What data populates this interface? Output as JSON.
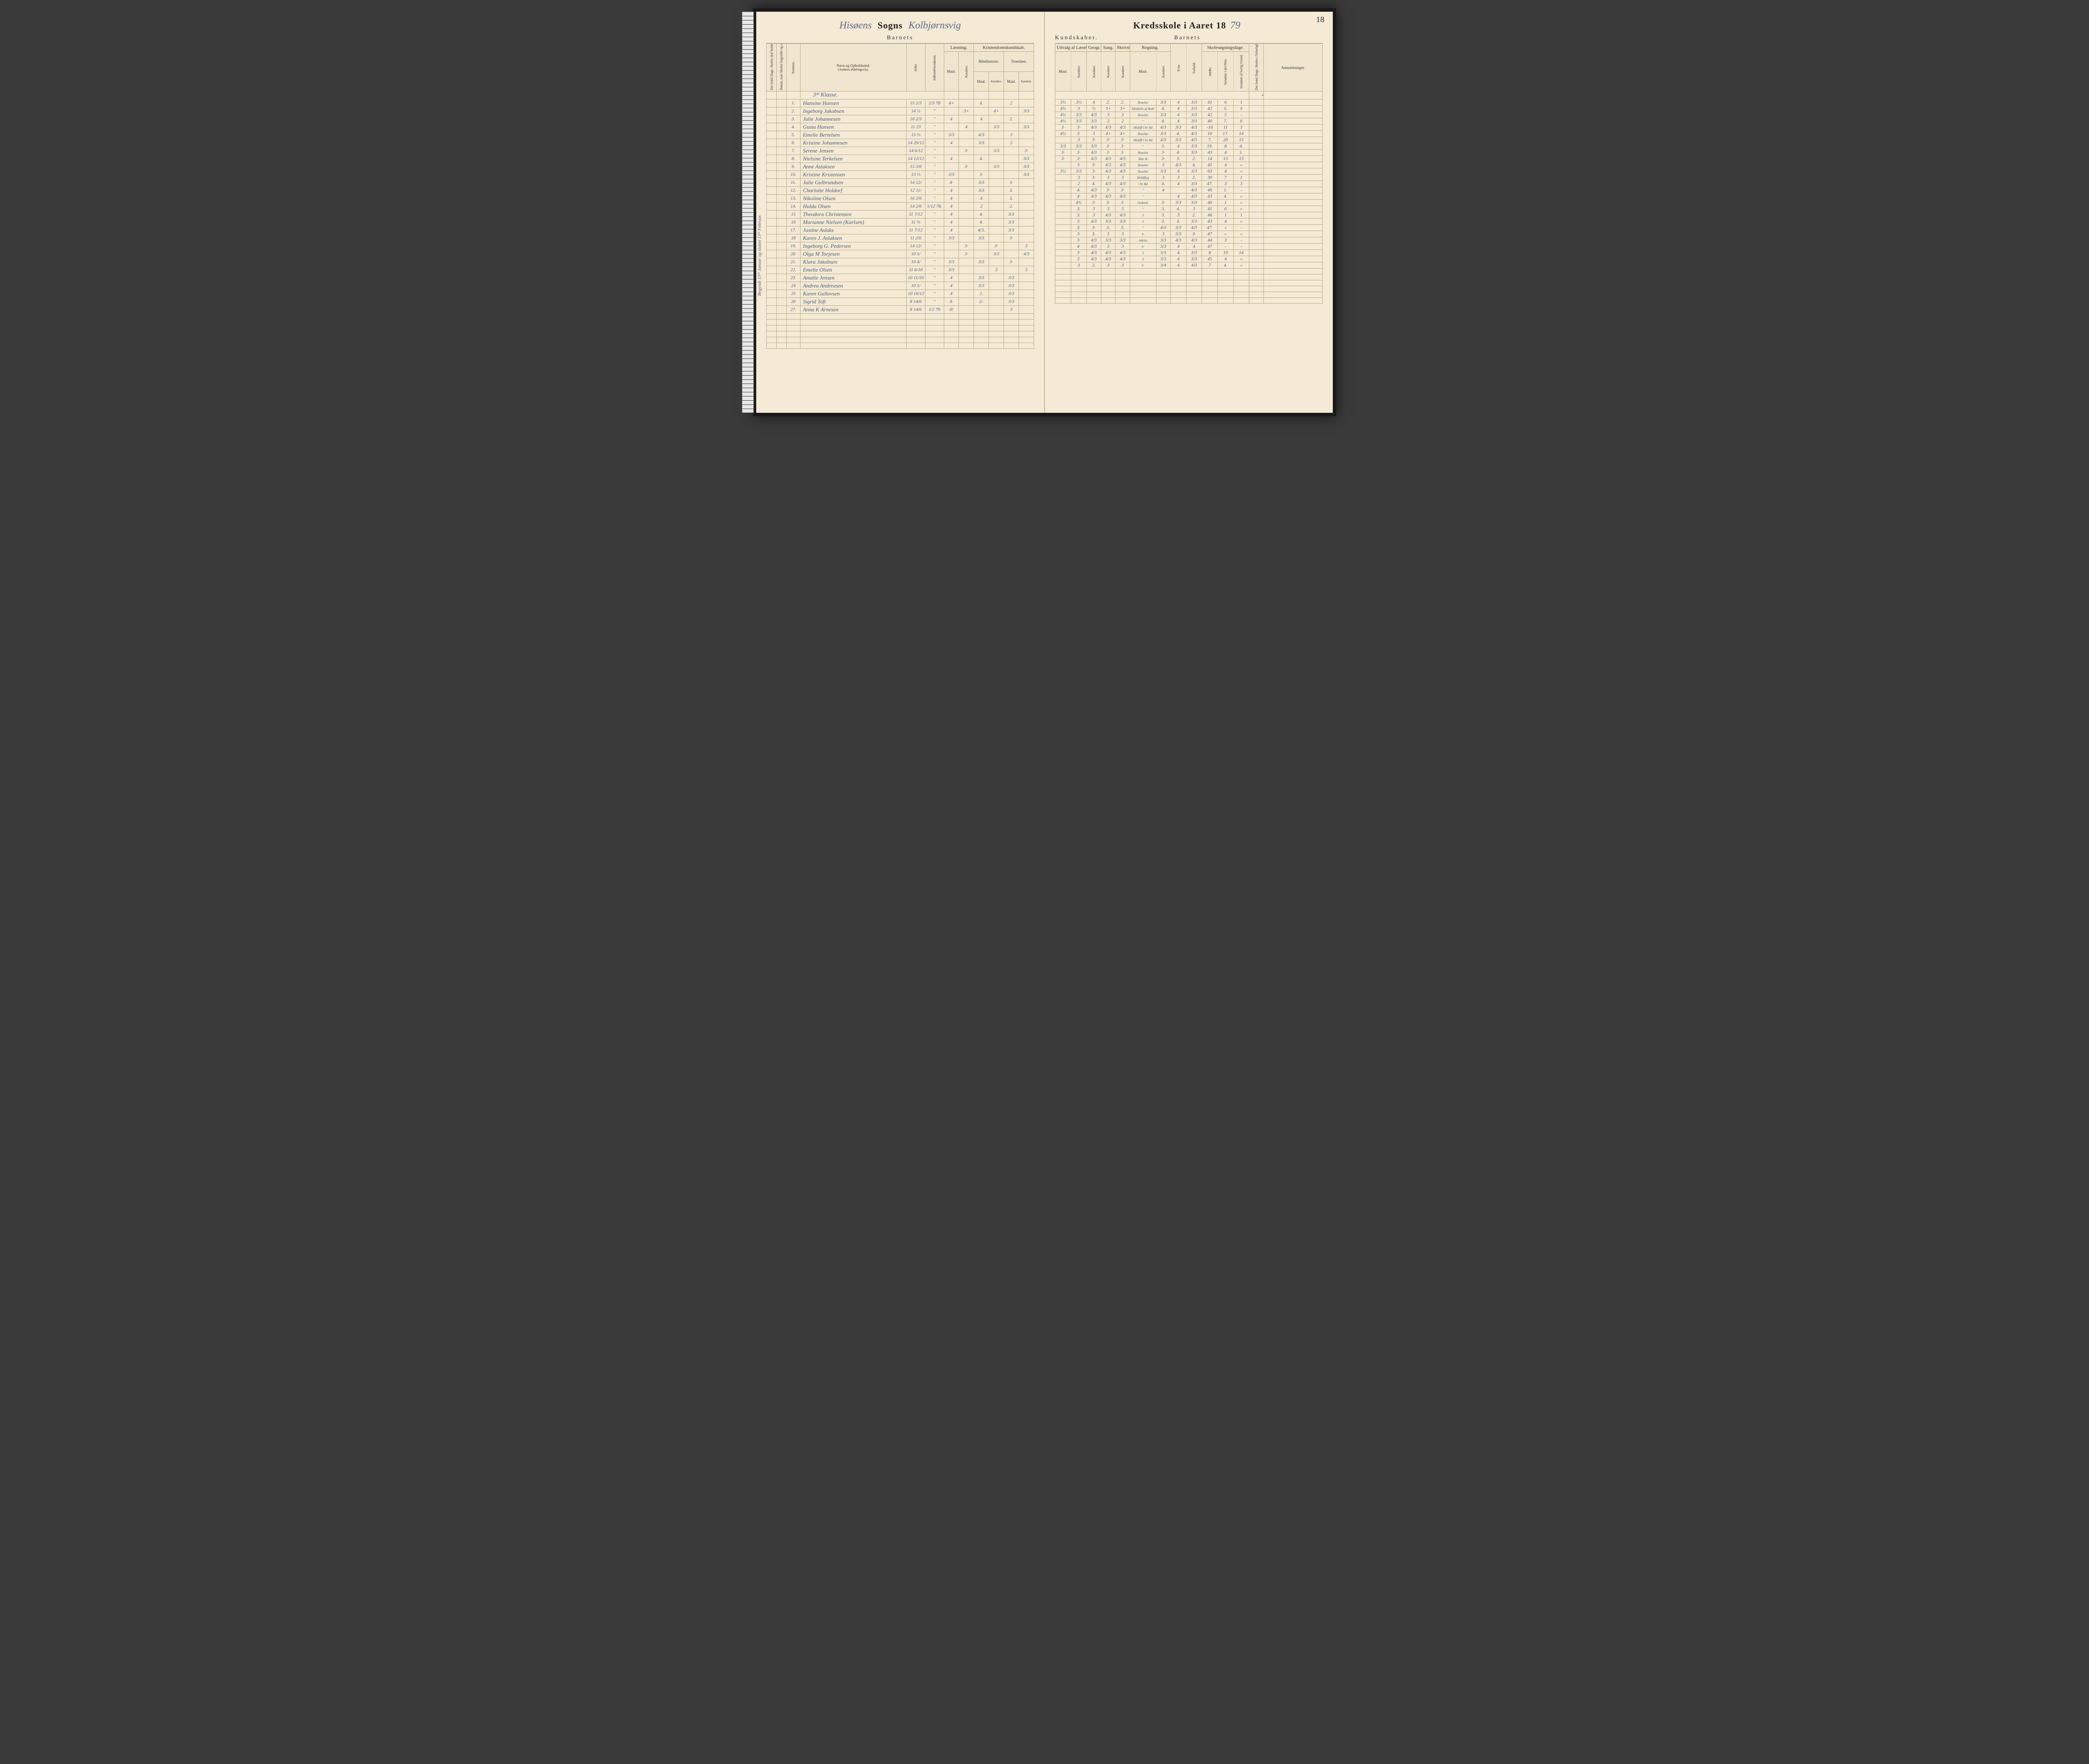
{
  "pageNumber": "18",
  "headerLeft": {
    "parishCursive": "Hisøens",
    "sogns": "Sogns",
    "districtCursive": "Kolbjørnsvig"
  },
  "headerRight": {
    "kredsskole": "Kredsskole i Aaret 18",
    "yearCursive": "79"
  },
  "barnets": "Barnets",
  "colsLeft": {
    "dage": "Det Antal Dage, Skolen skal holdes i Kredsen.",
    "datum": "Datum, naar Skolen begynder og slutter hver Omgang.",
    "nummer": "Nummer.",
    "navn": "Navn og Opholdssted.",
    "anfores": "(Anføres afdelingsvis).",
    "alder": "Alder.",
    "indtr": "Indtrædelsesdatum.",
    "laesning": "Læsning.",
    "kristendom": "Kristendomskundskab.",
    "bibel": "Bibelhistorie.",
    "troes": "Troeslære.",
    "maal": "Maal.",
    "karakter": "Karakter."
  },
  "colsRight": {
    "kundskaber": "Kundskaber.",
    "udvalg": "Udvalg af Læsebogen.",
    "geogr": "Geogr.",
    "sang": "Sang.",
    "skriv": "Skrivning.",
    "regning": "Regning.",
    "evne": "Evne.",
    "forhold": "Forhold.",
    "skolesog": "Skolesøgningsdage.",
    "modte": "mødte.",
    "forsLov": "forsømte i det Hele.",
    "forsUlov": "forsømte af lovlig Grund.",
    "antal": "Det Antal Dage, Skolen i Virkeligheden er holdt.",
    "anm": "Anmærkninger."
  },
  "klasse": "3ᵈᵉ Klasse.",
  "totalDays": "47.",
  "sideNote": "Begyndt 13ᵈᵉ Januar og sluttet 13ᵈᵉ Februar.",
  "rightTotal": "47.",
  "rows": [
    {
      "n": "1.",
      "name": "Hansine Hansen",
      "age": "15 2/3",
      "ind": "2/3 78",
      "lm": "4+",
      "lk": "",
      "bm": "4.",
      "bk": "",
      "tm": "2",
      "tk": "",
      "um": "3½",
      "uk": "3½",
      "gk": "4",
      "sk": "2.",
      "skm": "Rosolut",
      "rk": "3/3",
      "ev": "4",
      "fo": "3/3",
      "mo": "41",
      "f1": "6",
      "f2": "1"
    },
    {
      "n": "2.",
      "name": "Ingeborg Jakobsen",
      "age": "14 ½",
      "ind": "\"",
      "lm": "",
      "lk": "3+",
      "bm": "",
      "bk": "4+",
      "tm": "",
      "tk": "3/3",
      "um": "4½",
      "uk": "3",
      "gk": "½",
      "sk": "3+",
      "skm": "Middelm af Bodt",
      "rk": "4.",
      "ev": "4",
      "fo": "3/3",
      "mo": "42",
      "f1": "5.",
      "f2": "5"
    },
    {
      "n": "3.",
      "name": "Julie Johannesen",
      "age": "10 2/3",
      "ind": "\"",
      "lm": "4",
      "lk": "",
      "bm": "4",
      "bk": "",
      "tm": "2.",
      "tk": "",
      "um": "4½",
      "uk": "3/3",
      "gk": "4/3",
      "sk": "3",
      "skm": "Rosolut",
      "rk": "3/3",
      "ev": "4",
      "fo": "3/3",
      "mo": "42",
      "f1": "5",
      "f2": "-"
    },
    {
      "n": "4.",
      "name": "Gusta Hansen",
      "age": "11 23",
      "ind": "\"",
      "lm": "",
      "lk": "4",
      "bm": "",
      "bk": "3/3",
      "tm": "",
      "tk": "3/3",
      "um": "4½",
      "uk": "3/3",
      "gk": "3/3",
      "sk": "2",
      "skm": "\"",
      "rk": "4.",
      "ev": "4",
      "fo": "3/3",
      "mo": "40",
      "f1": "7.",
      "f2": "6"
    },
    {
      "n": "5.",
      "name": "Emelie Bertelsen",
      "age": "15 ⅔",
      "ind": "\"",
      "lm": "3/3",
      "lk": "",
      "bm": "4/3",
      "bk": "",
      "tm": "3",
      "tk": "",
      "um": "3·",
      "uk": "3·",
      "gk": "4/3",
      "sk": "4/3",
      "skm": "Middfl i br Bd",
      "rk": "4/3",
      "ev": "3/3",
      "fo": "4/3",
      "mo": "-16",
      "f1": "11",
      "f2": "3"
    },
    {
      "n": "6.",
      "name": "Kristine Johannesen",
      "age": "14 20/12",
      "ind": "\"",
      "lm": "4",
      "lk": "",
      "bm": "3/3",
      "bk": "",
      "tm": "2",
      "tk": "",
      "um": "4½",
      "uk": "3·",
      "gk": "3",
      "sk": "4+",
      "skm": "Rosolut",
      "rk": "3/3",
      "ev": "4.",
      "fo": "4/3",
      "mo": "10",
      "f1": "17.",
      "f2": "14"
    },
    {
      "n": "7.",
      "name": "Serene Jensen",
      "age": "14 6/12",
      "ind": "\"",
      "lm": "",
      "lk": "3·",
      "bm": "",
      "bk": "3/3",
      "tm": "",
      "tk": "3·",
      "um": "",
      "uk": "3",
      "gk": "3·",
      "sk": "3·",
      "skm": "Middfl i br Bd",
      "rk": "4/3",
      "ev": "3/3",
      "fo": "4/3",
      "mo": "7.",
      "f1": "20",
      "f2": "15"
    },
    {
      "n": "8.",
      "name": "Nielsine Terkelsen",
      "age": "14 12/12",
      "ind": "\"",
      "lm": "4",
      "lk": "",
      "bm": "4.",
      "bk": "",
      "tm": "",
      "tk": "3/3",
      "um": "3/3",
      "uk": "3/3",
      "gk": "3/3",
      "sk": "3·",
      "skm": "\"",
      "rk": "3.",
      "ev": "4",
      "fo": "3/3",
      "mo": "19.",
      "f1": "8",
      "f2": "4."
    },
    {
      "n": "9.",
      "name": "Anne Aslaksen",
      "age": "15 3/6",
      "ind": "\"",
      "lm": "",
      "lk": "3·",
      "bm": "",
      "bk": "3/3",
      "tm": "",
      "tk": "3/3",
      "um": "3·",
      "uk": "3·",
      "gk": "4/3",
      "sk": "3·",
      "skm": "Rosolut",
      "rk": "3·",
      "ev": "4·",
      "fo": "3/3",
      "mo": "43",
      "f1": "4",
      "f2": "1."
    },
    {
      "n": "10.",
      "name": "Kristine Kristensen",
      "age": "13 ⅓",
      "ind": "\"",
      "lm": "3/3",
      "lk": "",
      "bm": "3·",
      "bk": "",
      "tm": "",
      "tk": "3/3",
      "um": "3·",
      "uk": "3·",
      "gk": "4/3",
      "sk": "4/3",
      "skm": "Mar &",
      "rk": "3·",
      "ev": "3.",
      "fo": "2.",
      "mo": "14",
      "f1": "13",
      "f2": "13"
    },
    {
      "n": "11.",
      "name": "Julie Gulbrandsen",
      "age": "14 12/",
      "ind": "\"",
      "lm": "4·",
      "lk": "",
      "bm": "3/3",
      "bk": "",
      "tm": "3·",
      "tk": "",
      "um": "",
      "uk": "3·",
      "gk": "3·",
      "sk": "4/3",
      "skm": "Rosolut",
      "rk": "3",
      "ev": "4/3",
      "fo": "4.",
      "mo": "45",
      "f1": "4",
      "f2": "«"
    },
    {
      "n": "12.",
      "name": "Charlotte Holdorf",
      "age": "12 11/",
      "ind": "\"",
      "lm": "4",
      "lk": "",
      "bm": "3/3",
      "bk": "",
      "tm": "3.",
      "tk": "",
      "um": "3½",
      "uk": "3/3",
      "gk": "3·",
      "sk": "4/3",
      "skm": "Rosolut",
      "rk": "3/3",
      "ev": "4",
      "fo": "3/3",
      "mo": "63",
      "f1": "4",
      "f2": "«"
    },
    {
      "n": "13.",
      "name": "Nikoline Olsen",
      "age": "16 2/6",
      "ind": "\"",
      "lm": "4",
      "lk": "",
      "bm": "4",
      "bk": "",
      "tm": "3.",
      "tk": "",
      "um": "",
      "uk": "3",
      "gk": "3·",
      "sk": "3",
      "skm": "Middflyg",
      "rk": "3",
      "ev": "3",
      "fo": "2.",
      "mo": "30",
      "f1": "7",
      "f2": "1"
    },
    {
      "n": "14.",
      "name": "Hulda Olsen",
      "age": "14 2/6",
      "ind": "1/12 78.",
      "lm": "4",
      "lk": "",
      "bm": "2",
      "bk": "",
      "tm": "2.",
      "tk": "",
      "um": "",
      "uk": "2",
      "gk": "4.",
      "sk": "4/3",
      "skm": "i br Bd",
      "rk": "4.",
      "ev": "4",
      "fo": "3/3",
      "mo": "47.",
      "f1": "3",
      "f2": "3"
    },
    {
      "n": "15",
      "name": "Theodora Christensen",
      "age": "11 7/12",
      "ind": "\"",
      "lm": "4",
      "lk": "",
      "bm": "4.",
      "bk": "",
      "tm": "3/3",
      "tk": "",
      "um": "",
      "uk": "4.",
      "gk": "4/3",
      "sk": "3·",
      "skm": "\"",
      "rk": "4",
      "ev": "",
      "fo": "4/3",
      "mo": "46",
      "f1": "1.",
      "f2": "-"
    },
    {
      "n": "16",
      "name": "Marianne Nielsen (Karlsen)",
      "age": "11 ⅔",
      "ind": "\"",
      "lm": "4",
      "lk": "",
      "bm": "4.",
      "bk": "",
      "tm": "3/3",
      "tk": "",
      "um": "",
      "uk": "4·",
      "gk": "4/3",
      "sk": "4/3",
      "skm": "\"",
      "rk": "",
      "ev": "4",
      "fo": "4/3",
      "mo": "43",
      "f1": "4.",
      "f2": "«"
    },
    {
      "n": "17.",
      "name": "Justine Aslaks",
      "age": "11 7/12",
      "ind": "\"",
      "lm": "4",
      "lk": "",
      "bm": "4/3.",
      "bk": "",
      "tm": "3/3",
      "tk": "",
      "um": "",
      "uk": "4½",
      "gk": "3·",
      "sk": "3·",
      "skm": "Ordentl.",
      "rk": "3·",
      "ev": "3/3",
      "fo": "3/3",
      "mo": "46",
      "f1": "1",
      "f2": "«"
    },
    {
      "n": "18",
      "name": "Karen J. Aslaksen",
      "age": "11 2/6",
      "ind": "\"",
      "lm": "3/3",
      "lk": "",
      "bm": "3/3",
      "bk": "",
      "tm": "3·",
      "tk": "",
      "um": "",
      "uk": "3.",
      "gk": "3",
      "sk": "3",
      "skm": "\"",
      "rk": "3.",
      "ev": "4.",
      "fo": "3",
      "mo": "41",
      "f1": "6",
      "f2": "«"
    },
    {
      "n": "19.",
      "name": "Ingeborg G. Pedersen",
      "age": "14 12/",
      "ind": "\"",
      "lm": "",
      "lk": "3·",
      "bm": "",
      "bk": "3·",
      "tm": "",
      "tk": "3",
      "um": "",
      "uk": "3.",
      "gk": "3",
      "sk": "4/3",
      "skm": "3",
      "rk": "3.",
      "ev": "3",
      "fo": "2.",
      "mo": "46",
      "f1": "1",
      "f2": "1"
    },
    {
      "n": "20.",
      "name": "Olga M Torjesen",
      "age": "10 5/",
      "ind": "\"",
      "lm": "",
      "lk": "3·",
      "bm": "",
      "bk": "3/3",
      "tm": "",
      "tk": "4/3",
      "um": "",
      "uk": "3·",
      "gk": "4/3",
      "sk": "3/3",
      "skm": "3",
      "rk": "3.",
      "ev": "4.",
      "fo": "3/3",
      "mo": "43",
      "f1": "4",
      "f2": "«"
    },
    {
      "n": "21.",
      "name": "Klara Jakobsen",
      "age": "10 4/",
      "ind": "\"",
      "lm": "3/3",
      "lk": "",
      "bm": "3/3",
      "bk": "",
      "tm": "3·",
      "tk": "",
      "um": "",
      "uk": "3.",
      "gk": "3·",
      "sk": "3.",
      "skm": "\"",
      "rk": "4/3",
      "ev": "3/3",
      "fo": "4/3",
      "mo": "47.",
      "f1": "«",
      "f2": "-"
    },
    {
      "n": "22.",
      "name": "Emelie Olsen",
      "age": "11 6/10",
      "ind": "\"",
      "lm": "3/3",
      "lk": "",
      "bm": "",
      "bk": "3",
      "tm": "",
      "tk": "3",
      "um": "",
      "uk": "3·",
      "gk": "3.",
      "sk": "3",
      "skm": "3·",
      "rk": "3",
      "ev": "3/3",
      "fo": "3·",
      "mo": "47",
      "f1": "«",
      "f2": "«"
    },
    {
      "n": "23.",
      "name": "Amalie Jensen",
      "age": "10 11/10",
      "ind": "\"",
      "lm": "4",
      "lk": "",
      "bm": "3/3",
      "bk": "",
      "tm": "3/3",
      "tk": "",
      "um": "",
      "uk": "3·",
      "gk": "4/3",
      "sk": "3/3",
      "skm": "Adeles",
      "rk": "3/3",
      "ev": "4/3",
      "fo": "4/3",
      "mo": "44",
      "f1": "3",
      "f2": "-"
    },
    {
      "n": "24",
      "name": "Andrea Andreasen",
      "age": "10 5/",
      "ind": "\"",
      "lm": "4",
      "lk": "",
      "bm": "3/3",
      "bk": "",
      "tm": "3/3",
      "tk": "",
      "um": "",
      "uk": "4·",
      "gk": "4/3",
      "sk": "3",
      "skm": "3·",
      "rk": "3/3",
      "ev": "4",
      "fo": "4",
      "mo": "47",
      "f1": "-",
      "f2": "-"
    },
    {
      "n": "25",
      "name": "Karen Gullovsen",
      "age": "10 16/12",
      "ind": "\"",
      "lm": "4",
      "lk": "",
      "bm": "2.",
      "bk": "",
      "tm": "3/3",
      "tk": "",
      "um": "",
      "uk": "3·",
      "gk": "4/3",
      "sk": "4/3",
      "skm": "3",
      "rk": "3/3",
      "ev": "4",
      "fo": "3/3",
      "mo": "8",
      "f1": "19",
      "f2": "14"
    },
    {
      "n": "26",
      "name": "Sigrid Toft",
      "age": "8 14/6",
      "ind": "\"",
      "lm": "4·",
      "lk": "",
      "bm": "2/.",
      "bk": "",
      "tm": "3/3",
      "tk": "",
      "um": "",
      "uk": "3·",
      "gk": "4/3",
      "sk": "4/3",
      "skm": "3",
      "rk": "3/3",
      "ev": "4",
      "fo": "3/3",
      "mo": "45",
      "f1": "4",
      "f2": "«"
    },
    {
      "n": "27.",
      "name": "Anna K Arnesen",
      "age": "8 14/6",
      "ind": "1/2 79",
      "lm": "4!",
      "lk": "",
      "bm": "",
      "bk": "",
      "tm": "3",
      "tk": "",
      "um": "",
      "uk": "3",
      "gk": "2.",
      "sk": "3",
      "skm": "3·",
      "rk": "3/4",
      "ev": "4",
      "fo": "4/3",
      "mo": "7",
      "f1": "4.",
      "f2": "«"
    }
  ]
}
